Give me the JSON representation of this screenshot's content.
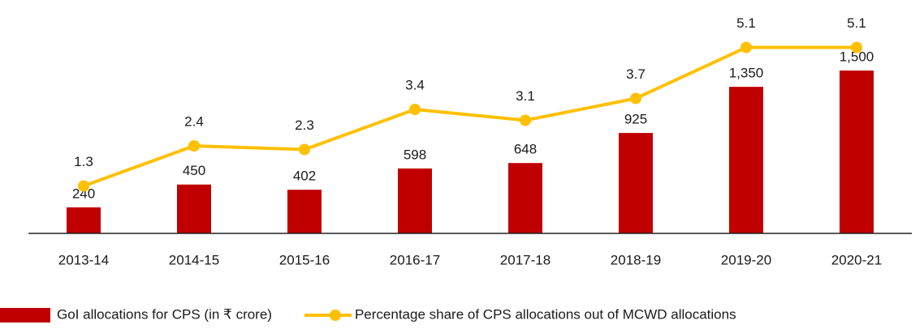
{
  "chart_data": {
    "type": "bar-line",
    "categories": [
      "2013-14",
      "2014-15",
      "2015-16",
      "2016-17",
      "2017-18",
      "2018-19",
      "2019-20",
      "2020-21"
    ],
    "series": [
      {
        "name": "GoI allocations for CPS (in ₹ crore)",
        "type": "bar",
        "color": "#c00000",
        "values": [
          240,
          450,
          402,
          598,
          648,
          925,
          1350,
          1500
        ],
        "value_labels": [
          "240",
          "450",
          "402",
          "598",
          "648",
          "925",
          "1,350",
          "1,500"
        ]
      },
      {
        "name": "Percentage share of CPS allocations out of MCWD allocations",
        "type": "line",
        "axis": "y2",
        "color": "#ffc000",
        "values": [
          1.3,
          2.4,
          2.3,
          3.4,
          3.1,
          3.7,
          5.1,
          5.1
        ]
      }
    ],
    "ylim": [
      0,
      2150
    ],
    "y2lim": [
      0,
      6.4
    ],
    "grid": false,
    "legend": "bottom"
  }
}
